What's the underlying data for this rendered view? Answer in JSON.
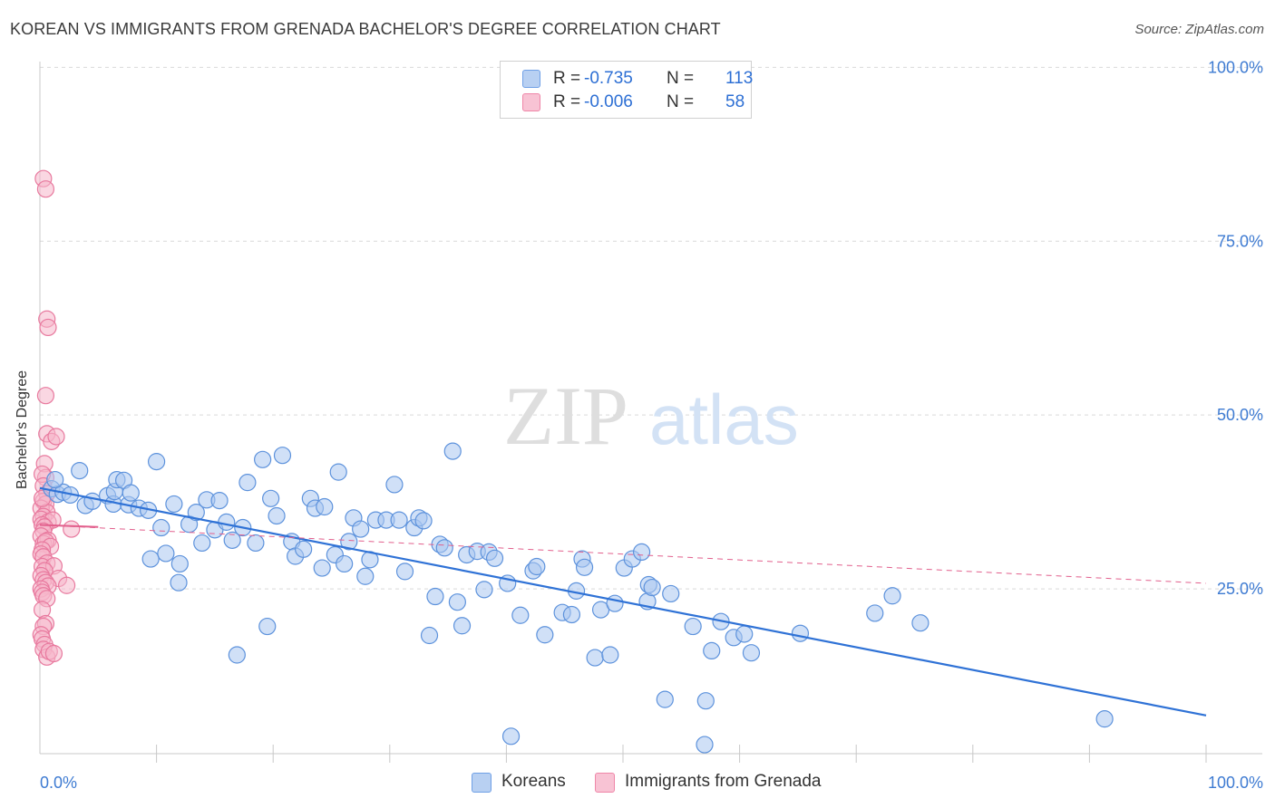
{
  "header": {
    "title": "KOREAN VS IMMIGRANTS FROM GRENADA BACHELOR'S DEGREE CORRELATION CHART",
    "source": "Source: ZipAtlas.com"
  },
  "watermark": {
    "zip": "ZIP",
    "atlas": "atlas"
  },
  "legend": {
    "rows": [
      {
        "r_label": "R =",
        "r_value": "-0.735",
        "n_label": "N =",
        "n_value": "113",
        "color": "#6fa0e6"
      },
      {
        "r_label": "R =",
        "r_value": "-0.006",
        "n_label": "N =",
        "n_value": "58",
        "color": "#ef86a8"
      }
    ]
  },
  "bottom_legend": [
    {
      "label": "Koreans",
      "color": "#6fa0e6"
    },
    {
      "label": "Immigrants from Grenada",
      "color": "#ef86a8"
    }
  ],
  "colors": {
    "blue_fill": "#a9c7f0",
    "blue_stroke": "#5d92dc",
    "blue_line": "#2f72d6",
    "pink_fill": "#f6b7cb",
    "pink_stroke": "#e8799e",
    "pink_line": "#e2608d",
    "grid": "#d9d9d9",
    "tick_label": "#3e7bd2"
  },
  "chart_data": {
    "type": "scatter",
    "title": "KOREAN VS IMMIGRANTS FROM GRENADA BACHELOR'S DEGREE CORRELATION CHART",
    "ylabel": "Bachelor's Degree",
    "xlabel": "",
    "x_tick_labels": [
      "0.0%",
      "100.0%"
    ],
    "y_tick_labels": [
      "25.0%",
      "50.0%",
      "75.0%",
      "100.0%"
    ],
    "y_ticks": [
      25,
      50,
      75,
      100
    ],
    "xlim": [
      0,
      100
    ],
    "ylim": [
      0,
      102
    ],
    "grid": true,
    "series": [
      {
        "name": "Koreans",
        "r": -0.735,
        "n": 113,
        "trend": {
          "x": [
            0,
            100
          ],
          "y": [
            39.5,
            6.8
          ],
          "style": "solid"
        },
        "points": [
          [
            1.0,
            39.4
          ],
          [
            1.5,
            38.6
          ],
          [
            2.0,
            38.9
          ],
          [
            2.6,
            38.5
          ],
          [
            1.3,
            40.7
          ],
          [
            3.4,
            42.0
          ],
          [
            3.9,
            37.0
          ],
          [
            4.5,
            37.6
          ],
          [
            5.8,
            38.4
          ],
          [
            6.3,
            37.2
          ],
          [
            6.4,
            39.0
          ],
          [
            6.6,
            40.7
          ],
          [
            7.2,
            40.6
          ],
          [
            7.6,
            37.1
          ],
          [
            7.8,
            38.8
          ],
          [
            8.5,
            36.6
          ],
          [
            9.3,
            36.3
          ],
          [
            9.5,
            29.3
          ],
          [
            10.0,
            43.3
          ],
          [
            10.4,
            33.8
          ],
          [
            10.8,
            30.1
          ],
          [
            11.5,
            37.2
          ],
          [
            11.9,
            25.9
          ],
          [
            12.0,
            28.6
          ],
          [
            12.8,
            34.3
          ],
          [
            13.4,
            36.0
          ],
          [
            13.9,
            31.6
          ],
          [
            14.3,
            37.8
          ],
          [
            15.0,
            33.5
          ],
          [
            15.4,
            37.7
          ],
          [
            16.0,
            34.6
          ],
          [
            16.5,
            32.0
          ],
          [
            16.9,
            15.5
          ],
          [
            17.4,
            33.8
          ],
          [
            17.8,
            40.3
          ],
          [
            18.5,
            31.6
          ],
          [
            19.1,
            43.6
          ],
          [
            19.5,
            19.6
          ],
          [
            19.8,
            38.0
          ],
          [
            20.3,
            35.5
          ],
          [
            20.8,
            44.2
          ],
          [
            21.6,
            31.8
          ],
          [
            21.9,
            29.7
          ],
          [
            22.6,
            30.7
          ],
          [
            23.2,
            38.0
          ],
          [
            23.6,
            36.6
          ],
          [
            24.2,
            28.0
          ],
          [
            24.4,
            36.8
          ],
          [
            25.3,
            29.9
          ],
          [
            25.6,
            41.8
          ],
          [
            26.1,
            28.6
          ],
          [
            26.5,
            31.8
          ],
          [
            26.9,
            35.2
          ],
          [
            27.5,
            33.6
          ],
          [
            27.9,
            26.8
          ],
          [
            28.3,
            29.2
          ],
          [
            28.8,
            34.9
          ],
          [
            29.7,
            34.9
          ],
          [
            30.4,
            40.0
          ],
          [
            30.8,
            34.9
          ],
          [
            31.3,
            27.5
          ],
          [
            32.1,
            33.8
          ],
          [
            32.5,
            35.2
          ],
          [
            32.9,
            34.8
          ],
          [
            33.4,
            18.3
          ],
          [
            33.9,
            23.9
          ],
          [
            34.3,
            31.4
          ],
          [
            34.7,
            30.9
          ],
          [
            35.4,
            44.8
          ],
          [
            35.8,
            23.1
          ],
          [
            36.2,
            19.7
          ],
          [
            36.6,
            29.9
          ],
          [
            37.5,
            30.4
          ],
          [
            38.1,
            24.9
          ],
          [
            38.5,
            30.3
          ],
          [
            39.0,
            29.4
          ],
          [
            40.1,
            25.8
          ],
          [
            40.4,
            3.8
          ],
          [
            41.2,
            21.2
          ],
          [
            42.3,
            27.6
          ],
          [
            42.6,
            28.2
          ],
          [
            43.3,
            18.4
          ],
          [
            44.8,
            21.6
          ],
          [
            45.6,
            21.3
          ],
          [
            46.0,
            24.7
          ],
          [
            46.5,
            29.3
          ],
          [
            46.7,
            28.1
          ],
          [
            47.6,
            15.1
          ],
          [
            48.1,
            22.0
          ],
          [
            48.9,
            15.5
          ],
          [
            49.3,
            22.9
          ],
          [
            50.1,
            28.0
          ],
          [
            50.8,
            29.3
          ],
          [
            51.6,
            30.3
          ],
          [
            52.1,
            23.2
          ],
          [
            52.2,
            25.6
          ],
          [
            52.5,
            25.2
          ],
          [
            53.6,
            9.1
          ],
          [
            54.1,
            24.3
          ],
          [
            56.0,
            19.6
          ],
          [
            57.0,
            2.6
          ],
          [
            57.1,
            8.9
          ],
          [
            57.6,
            16.1
          ],
          [
            58.4,
            20.3
          ],
          [
            59.5,
            18.0
          ],
          [
            60.4,
            18.5
          ],
          [
            61.0,
            15.8
          ],
          [
            65.2,
            18.6
          ],
          [
            71.6,
            21.5
          ],
          [
            73.1,
            24.0
          ],
          [
            75.5,
            20.1
          ],
          [
            91.3,
            6.3
          ]
        ]
      },
      {
        "name": "Immigrants from Grenada",
        "r": -0.006,
        "n": 58,
        "trend_solid": {
          "x": [
            0,
            5.0
          ],
          "y": [
            34.2,
            33.9
          ],
          "style": "solid"
        },
        "trend": {
          "x": [
            0,
            100
          ],
          "y": [
            34.2,
            25.8
          ],
          "style": "dashed"
        },
        "points": [
          [
            0.3,
            84.0
          ],
          [
            0.5,
            82.5
          ],
          [
            0.6,
            63.8
          ],
          [
            0.7,
            62.6
          ],
          [
            0.5,
            52.8
          ],
          [
            0.6,
            47.3
          ],
          [
            1.0,
            46.2
          ],
          [
            1.4,
            46.9
          ],
          [
            0.4,
            43.0
          ],
          [
            0.5,
            41.0
          ],
          [
            0.2,
            41.5
          ],
          [
            0.3,
            39.8
          ],
          [
            0.6,
            38.7
          ],
          [
            0.3,
            37.6
          ],
          [
            0.5,
            37.2
          ],
          [
            0.1,
            36.6
          ],
          [
            0.6,
            36.0
          ],
          [
            0.3,
            35.4
          ],
          [
            0.1,
            35.0
          ],
          [
            0.7,
            34.6
          ],
          [
            1.1,
            34.9
          ],
          [
            0.2,
            34.2
          ],
          [
            0.4,
            33.9
          ],
          [
            0.3,
            33.3
          ],
          [
            0.1,
            32.6
          ],
          [
            0.7,
            32.0
          ],
          [
            0.3,
            31.5
          ],
          [
            0.5,
            31.8
          ],
          [
            0.9,
            31.1
          ],
          [
            0.2,
            30.6
          ],
          [
            0.1,
            30.0
          ],
          [
            0.3,
            29.6
          ],
          [
            0.6,
            28.7
          ],
          [
            0.2,
            28.2
          ],
          [
            1.2,
            28.3
          ],
          [
            0.4,
            27.6
          ],
          [
            0.1,
            26.9
          ],
          [
            0.3,
            26.3
          ],
          [
            1.6,
            26.5
          ],
          [
            0.5,
            25.9
          ],
          [
            0.7,
            25.4
          ],
          [
            0.1,
            25.0
          ],
          [
            0.2,
            24.5
          ],
          [
            0.3,
            24.0
          ],
          [
            0.6,
            23.6
          ],
          [
            0.2,
            22.0
          ],
          [
            0.5,
            20.0
          ],
          [
            0.3,
            19.6
          ],
          [
            0.1,
            18.4
          ],
          [
            0.2,
            17.8
          ],
          [
            0.4,
            17.0
          ],
          [
            0.3,
            16.3
          ],
          [
            0.6,
            15.2
          ],
          [
            0.8,
            16.0
          ],
          [
            1.2,
            15.7
          ],
          [
            2.3,
            25.5
          ],
          [
            2.7,
            33.6
          ],
          [
            0.2,
            38.0
          ]
        ]
      }
    ]
  }
}
